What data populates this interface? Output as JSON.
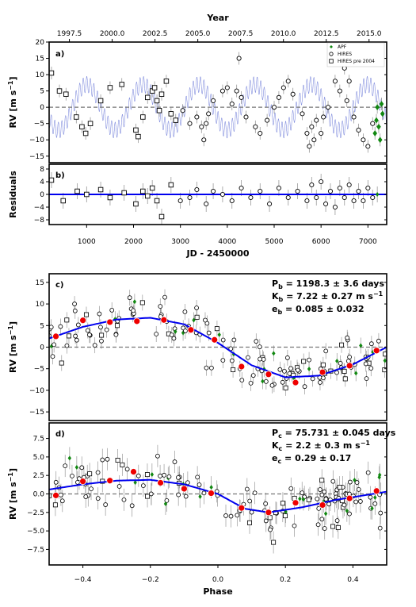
{
  "chart_data": [
    {
      "type": "scatter",
      "panel_label": "a)",
      "xlabel_top": "Year",
      "top_ticks": [
        "1997.5",
        "2000.0",
        "2002.5",
        "2005.0",
        "2007.5",
        "2010.0",
        "2012.5",
        "2015.0"
      ],
      "ylabel": "RV [m s⁻¹]",
      "ylim": [
        -17,
        20
      ],
      "yticks": [
        "20",
        "15",
        "10",
        "5",
        "0",
        "−5",
        "−10",
        "−15"
      ],
      "xlim": [
        200,
        7400
      ],
      "legend": {
        "placement": "top-right",
        "entries": [
          "APF",
          "HIRES",
          "HIRES pre 2004"
        ]
      },
      "series": [
        {
          "name": "HIRES pre 2004",
          "marker": "square",
          "points": [
            [
              250,
              10.5
            ],
            [
              420,
              5
            ],
            [
              560,
              4
            ],
            [
              780,
              -3
            ],
            [
              900,
              -6
            ],
            [
              980,
              -8
            ],
            [
              1080,
              -5
            ],
            [
              1300,
              2
            ],
            [
              1500,
              6
            ],
            [
              1750,
              7
            ],
            [
              2050,
              -7
            ],
            [
              2100,
              -9
            ],
            [
              2200,
              -3
            ],
            [
              2300,
              3
            ],
            [
              2400,
              5
            ],
            [
              2450,
              6
            ],
            [
              2500,
              2
            ],
            [
              2550,
              -1
            ],
            [
              2600,
              4
            ],
            [
              2700,
              8
            ],
            [
              2800,
              -2
            ],
            [
              2900,
              -4
            ]
          ]
        },
        {
          "name": "HIRES",
          "marker": "circle",
          "points": [
            [
              3050,
              -1
            ],
            [
              3200,
              -5
            ],
            [
              3350,
              -3
            ],
            [
              3450,
              -6
            ],
            [
              3500,
              -10
            ],
            [
              3550,
              -5
            ],
            [
              3600,
              -2
            ],
            [
              3700,
              2
            ],
            [
              3900,
              5
            ],
            [
              4000,
              6
            ],
            [
              4100,
              1
            ],
            [
              4200,
              5
            ],
            [
              4250,
              15
            ],
            [
              4300,
              3
            ],
            [
              4400,
              -3
            ],
            [
              4600,
              -6
            ],
            [
              4700,
              -8
            ],
            [
              4850,
              -4
            ],
            [
              5000,
              0
            ],
            [
              5100,
              3
            ],
            [
              5200,
              6
            ],
            [
              5300,
              8
            ],
            [
              5400,
              4
            ],
            [
              5600,
              -2
            ],
            [
              5700,
              -8
            ],
            [
              5750,
              -12
            ],
            [
              5800,
              -6
            ],
            [
              5850,
              -10
            ],
            [
              5900,
              -4
            ],
            [
              6000,
              -8
            ],
            [
              6050,
              -3
            ],
            [
              6150,
              0
            ],
            [
              6300,
              8
            ],
            [
              6400,
              5
            ],
            [
              6500,
              12
            ],
            [
              6550,
              2
            ],
            [
              6600,
              8
            ],
            [
              6700,
              -3
            ],
            [
              6800,
              -7
            ],
            [
              6900,
              -10
            ],
            [
              7000,
              -12
            ],
            [
              7100,
              -5
            ]
          ]
        },
        {
          "name": "APF",
          "marker": "diamond",
          "points": [
            [
              7150,
              -8
            ],
            [
              7180,
              -4
            ],
            [
              7200,
              0
            ],
            [
              7230,
              -6
            ],
            [
              7260,
              -10
            ],
            [
              7290,
              1
            ],
            [
              7310,
              -2
            ]
          ]
        }
      ]
    },
    {
      "type": "scatter",
      "panel_label": "b)",
      "ylabel": "Residuals",
      "ylim": [
        -9.5,
        9.5
      ],
      "yticks": [
        "8",
        "4",
        "0",
        "−4",
        "−8"
      ],
      "xlabel": "JD - 2450000",
      "xticks": [
        "1000",
        "2000",
        "3000",
        "4000",
        "5000",
        "6000",
        "7000"
      ],
      "xlim": [
        200,
        7400
      ],
      "residuals": [
        [
          250,
          4.5
        ],
        [
          500,
          -2
        ],
        [
          800,
          1
        ],
        [
          1000,
          0
        ],
        [
          1300,
          1.5
        ],
        [
          1500,
          -1
        ],
        [
          1800,
          0.5
        ],
        [
          2050,
          -3
        ],
        [
          2200,
          1
        ],
        [
          2300,
          -0.5
        ],
        [
          2400,
          2
        ],
        [
          2500,
          -2
        ],
        [
          2600,
          -7
        ],
        [
          2800,
          3
        ],
        [
          3000,
          -2
        ],
        [
          3200,
          -1
        ],
        [
          3350,
          1.5
        ],
        [
          3550,
          -3
        ],
        [
          3700,
          1
        ],
        [
          3900,
          0
        ],
        [
          4100,
          -2
        ],
        [
          4300,
          2
        ],
        [
          4500,
          -1
        ],
        [
          4700,
          1
        ],
        [
          4900,
          -3
        ],
        [
          5100,
          2
        ],
        [
          5300,
          -1
        ],
        [
          5500,
          1
        ],
        [
          5700,
          -2
        ],
        [
          5800,
          3
        ],
        [
          5900,
          -1
        ],
        [
          6000,
          4
        ],
        [
          6100,
          -3
        ],
        [
          6200,
          1
        ],
        [
          6300,
          -4
        ],
        [
          6400,
          2
        ],
        [
          6500,
          -1
        ],
        [
          6600,
          3
        ],
        [
          6700,
          -2
        ],
        [
          6800,
          1
        ],
        [
          6900,
          -2
        ],
        [
          7000,
          2
        ],
        [
          7100,
          -1
        ],
        [
          7200,
          0
        ]
      ]
    },
    {
      "type": "scatter",
      "panel_label": "c)",
      "ylabel": "RV [m s⁻¹]",
      "ylim": [
        -17,
        17
      ],
      "yticks": [
        "15",
        "10",
        "5",
        "0",
        "−5",
        "−10",
        "−15"
      ],
      "params": [
        "P",
        "b",
        "= 1198.3 ± 3.6 days",
        "K",
        "b",
        "= 7.22 ± 0.27 m s",
        "−1",
        "e",
        "b",
        "= 0.085 ± 0.032"
      ],
      "binned": [
        [
          -0.48,
          2.5
        ],
        [
          -0.4,
          6.2
        ],
        [
          -0.32,
          5.8
        ],
        [
          -0.24,
          6.0
        ],
        [
          -0.16,
          6.3
        ],
        [
          -0.08,
          4.0
        ],
        [
          -0.01,
          1.7
        ],
        [
          0.07,
          -4.5
        ],
        [
          0.15,
          -6.3
        ],
        [
          0.23,
          -8.2
        ],
        [
          0.31,
          -5.8
        ],
        [
          0.39,
          -4.3
        ],
        [
          0.47,
          -0.8
        ]
      ],
      "model": [
        [
          -0.5,
          2.0
        ],
        [
          -0.4,
          4.7
        ],
        [
          -0.3,
          6.4
        ],
        [
          -0.2,
          6.8
        ],
        [
          -0.1,
          5.3
        ],
        [
          0.0,
          1.0
        ],
        [
          0.1,
          -4.2
        ],
        [
          0.2,
          -7.0
        ],
        [
          0.3,
          -6.6
        ],
        [
          0.4,
          -4.0
        ],
        [
          0.5,
          0.0
        ]
      ]
    },
    {
      "type": "scatter",
      "panel_label": "d)",
      "ylabel": "RV [m s⁻¹]",
      "ylim": [
        -9.6,
        9.6
      ],
      "yticks": [
        "7.5",
        "5.0",
        "2.5",
        "0.0",
        "−2.5",
        "−5.0",
        "−7.5"
      ],
      "xlabel": "Phase",
      "xticks": [
        "−0.4",
        "−0.2",
        "0.0",
        "0.2",
        "0.4"
      ],
      "xlim": [
        -0.5,
        0.5
      ],
      "params": [
        "P",
        "c",
        "= 75.731 ± 0.045 days",
        "K",
        "c",
        "= 2.2 ± 0.3 m s",
        "−1",
        "e",
        "c",
        "= 0.29 ± 0.17"
      ],
      "binned": [
        [
          -0.48,
          -0.2
        ],
        [
          -0.4,
          1.7
        ],
        [
          -0.32,
          1.8
        ],
        [
          -0.25,
          3.0
        ],
        [
          -0.17,
          1.5
        ],
        [
          -0.1,
          0.7
        ],
        [
          -0.02,
          0.1
        ],
        [
          0.07,
          -1.9
        ],
        [
          0.15,
          -2.5
        ],
        [
          0.23,
          -1.2
        ],
        [
          0.31,
          -1.5
        ],
        [
          0.39,
          -0.6
        ],
        [
          0.47,
          0.4
        ]
      ],
      "model": [
        [
          -0.5,
          0.6
        ],
        [
          -0.4,
          1.3
        ],
        [
          -0.3,
          1.8
        ],
        [
          -0.2,
          1.9
        ],
        [
          -0.1,
          1.3
        ],
        [
          0.0,
          0.0
        ],
        [
          0.08,
          -2.0
        ],
        [
          0.15,
          -2.5
        ],
        [
          0.25,
          -1.8
        ],
        [
          0.35,
          -0.8
        ],
        [
          0.5,
          0.3
        ]
      ]
    }
  ],
  "colors": {
    "model": "#0000ee",
    "binned": "#ee0000",
    "apf": "#118811",
    "orbit_trace": "#6a78d8",
    "errorbar": "#999999",
    "zero_line": "#777777"
  }
}
